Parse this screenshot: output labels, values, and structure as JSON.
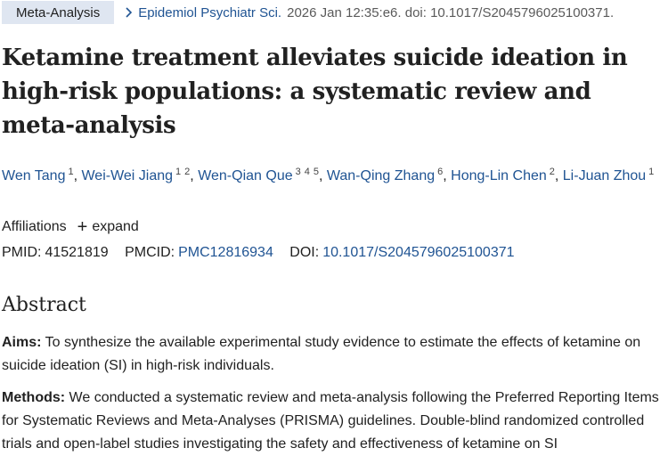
{
  "breadcrumb": {
    "badge": "Meta-Analysis",
    "journal": "Epidemiol Psychiatr Sci.",
    "citation": "2026 Jan 12:35:e6. doi: 10.1017/S2045796025100371."
  },
  "title": "Ketamine treatment alleviates suicide ideation in high-risk populations: a systematic review and meta-analysis",
  "authors": [
    {
      "name": "Wen Tang",
      "affs": [
        "1"
      ]
    },
    {
      "name": "Wei-Wei Jiang",
      "affs": [
        "1",
        "2"
      ]
    },
    {
      "name": "Wen-Qian Que",
      "affs": [
        "3",
        "4",
        "5"
      ]
    },
    {
      "name": "Wan-Qing Zhang",
      "affs": [
        "6"
      ]
    },
    {
      "name": "Hong-Lin Chen",
      "affs": [
        "2"
      ]
    },
    {
      "name": "Li-Juan Zhou",
      "affs": [
        "1"
      ]
    }
  ],
  "affiliations": {
    "label": "Affiliations",
    "expand_label": "expand"
  },
  "ids": {
    "pmid_label": "PMID:",
    "pmid": "41521819",
    "pmcid_label": "PMCID:",
    "pmcid": "PMC12816934",
    "doi_label": "DOI:",
    "doi": "10.1017/S2045796025100371"
  },
  "abstract": {
    "heading": "Abstract",
    "aims_label": "Aims:",
    "aims_text": " To synthesize the available experimental study evidence to estimate the effects of ketamine on suicide ideation (SI) in high-risk individuals.",
    "methods_label": "Methods:",
    "methods_text": " We conducted a systematic review and meta-analysis following the Preferred Reporting Items for Systematic Reviews and Meta-Analyses (PRISMA) guidelines. Double-blind randomized controlled trials and open-label studies investigating the safety and effectiveness of ketamine on SI"
  },
  "colors": {
    "link": "#205493",
    "badge_bg": "#dfe6f1"
  }
}
